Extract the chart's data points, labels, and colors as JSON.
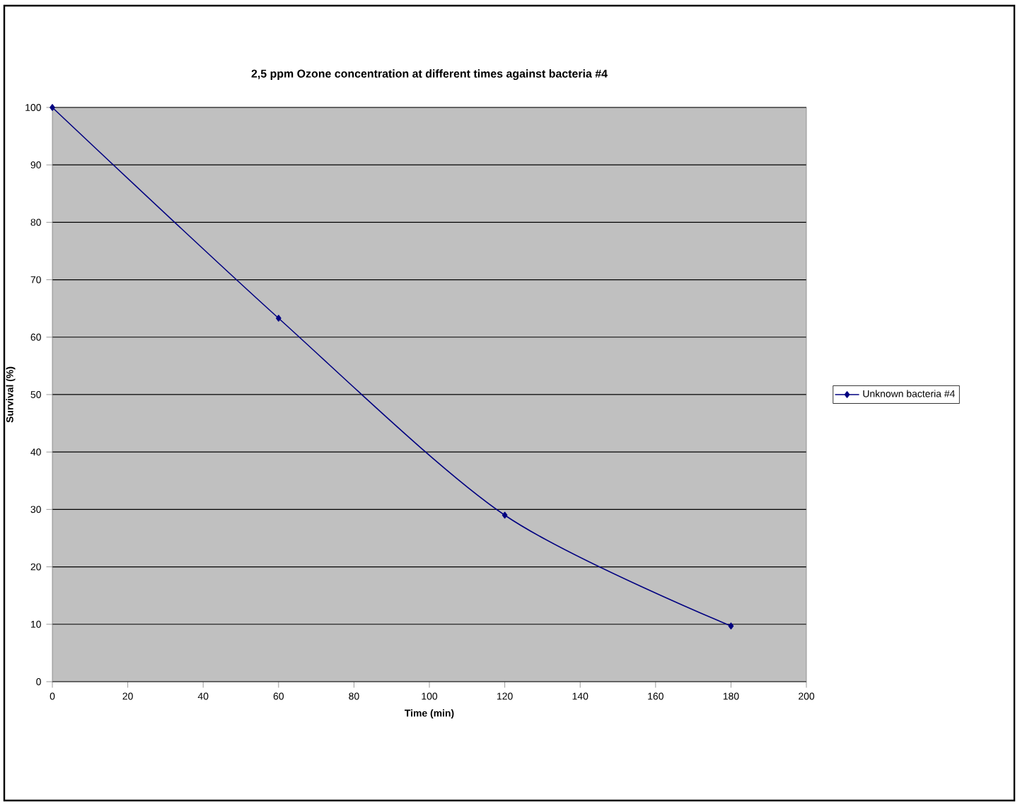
{
  "chart_data": {
    "type": "line",
    "title": "2,5 ppm Ozone concentration at different times against bacteria #4",
    "xlabel": "Time (min)",
    "ylabel": "Survival (%)",
    "x": [
      0,
      60,
      120,
      180
    ],
    "series": [
      {
        "name": "Unknown bacteria #4",
        "color": "#000080",
        "values": [
          100,
          63.3,
          29,
          9.7
        ]
      }
    ],
    "xlim": [
      0,
      200
    ],
    "ylim": [
      0,
      100
    ],
    "xticks": [
      0,
      20,
      40,
      60,
      80,
      100,
      120,
      140,
      160,
      180,
      200
    ],
    "yticks": [
      0,
      10,
      20,
      30,
      40,
      50,
      60,
      70,
      80,
      90,
      100
    ],
    "grid": "y",
    "legend": "right",
    "marker": "diamond",
    "line_style": "solid"
  }
}
